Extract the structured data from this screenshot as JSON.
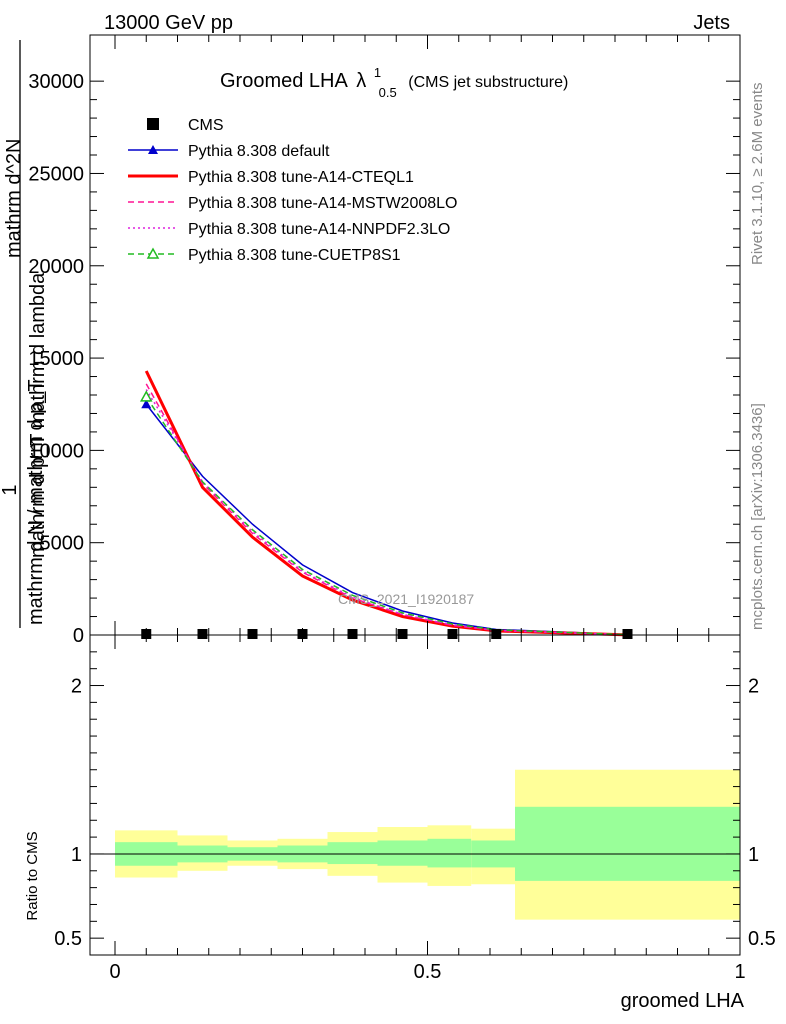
{
  "header": {
    "left": "13000 GeV pp",
    "right": "Jets"
  },
  "side": {
    "top": "Rivet 3.1.10, ≥ 2.6M events",
    "bottom": "mcplots.cern.ch [arXiv:1306.3436]"
  },
  "watermark": "CMS_2021_I1920187",
  "chart_data": [
    {
      "type": "line",
      "title": {
        "main": "Groomed LHA",
        "lambda": "λ",
        "sup": "1",
        "sub": "0.5",
        "note": "(CMS jet substructure)"
      },
      "ylabel": {
        "frac_numerator": "1",
        "frac_denominator": "mathrm d N / mathrm d p_T",
        "overlay_line1": "mathrm d^2N",
        "overlay_line2": "mathrm d p_T mathrm d lambda"
      },
      "xlim": [
        -0.04,
        1.0
      ],
      "ylim": [
        0,
        32500
      ],
      "yticks": [
        {
          "value": 0,
          "label": "0"
        },
        {
          "value": 5000,
          "label": "5000"
        },
        {
          "value": 10000,
          "label": "10000"
        },
        {
          "value": 15000,
          "label": "15000"
        },
        {
          "value": 20000,
          "label": "20000"
        },
        {
          "value": 25000,
          "label": "25000"
        },
        {
          "value": 30000,
          "label": "30000"
        }
      ],
      "x_bins": [
        0.05,
        0.14,
        0.22,
        0.3,
        0.38,
        0.46,
        0.54,
        0.61,
        0.82
      ],
      "series": [
        {
          "name": "CMS",
          "color": "#000000",
          "style": "square",
          "values": [
            0,
            0,
            0,
            0,
            0,
            0,
            0,
            0,
            0
          ]
        },
        {
          "name": "Pythia 8.308 default",
          "color": "#0000cc",
          "style": "solid-triangle",
          "values": [
            12500,
            8600,
            6000,
            3800,
            2300,
            1300,
            650,
            300,
            20
          ]
        },
        {
          "name": "Pythia 8.308 tune-A14-CTEQL1",
          "color": "#ff0000",
          "style": "solid-thick",
          "values": [
            14300,
            8000,
            5300,
            3200,
            1900,
            1000,
            480,
            220,
            10
          ]
        },
        {
          "name": "Pythia 8.308 tune-A14-MSTW2008LO",
          "color": "#ff1493",
          "style": "dashed",
          "values": [
            13600,
            8200,
            5500,
            3400,
            2000,
            1100,
            520,
            240,
            12
          ]
        },
        {
          "name": "Pythia 8.308 tune-A14-NNPDF2.3LO",
          "color": "#dd22dd",
          "style": "dotted",
          "values": [
            13300,
            8300,
            5600,
            3450,
            2050,
            1120,
            540,
            250,
            12
          ]
        },
        {
          "name": "Pythia 8.308 tune-CUETP8S1",
          "color": "#22bb22",
          "style": "dashed-open-triangle",
          "values": [
            12900,
            8300,
            5700,
            3550,
            2150,
            1200,
            600,
            280,
            15
          ]
        }
      ]
    },
    {
      "type": "area",
      "ylabel": "Ratio to CMS",
      "xlabel": "groomed LHA",
      "xlim": [
        -0.04,
        1.0
      ],
      "ylim": [
        0.4,
        2.3
      ],
      "yticks": [
        {
          "value": 0.5,
          "label": "0.5"
        },
        {
          "value": 1,
          "label": "1"
        },
        {
          "value": 2,
          "label": "2"
        }
      ],
      "xticks": [
        {
          "value": 0,
          "label": "0"
        },
        {
          "value": 0.5,
          "label": "0.5"
        },
        {
          "value": 1,
          "label": "1"
        }
      ],
      "bins": [
        {
          "lo": 0.0,
          "hi": 0.1,
          "inner": [
            0.93,
            1.07
          ],
          "outer": [
            0.86,
            1.14
          ]
        },
        {
          "lo": 0.1,
          "hi": 0.18,
          "inner": [
            0.95,
            1.05
          ],
          "outer": [
            0.9,
            1.11
          ]
        },
        {
          "lo": 0.18,
          "hi": 0.26,
          "inner": [
            0.96,
            1.04
          ],
          "outer": [
            0.93,
            1.08
          ]
        },
        {
          "lo": 0.26,
          "hi": 0.34,
          "inner": [
            0.95,
            1.05
          ],
          "outer": [
            0.91,
            1.09
          ]
        },
        {
          "lo": 0.34,
          "hi": 0.42,
          "inner": [
            0.94,
            1.07
          ],
          "outer": [
            0.87,
            1.13
          ]
        },
        {
          "lo": 0.42,
          "hi": 0.5,
          "inner": [
            0.93,
            1.08
          ],
          "outer": [
            0.83,
            1.16
          ]
        },
        {
          "lo": 0.5,
          "hi": 0.57,
          "inner": [
            0.92,
            1.09
          ],
          "outer": [
            0.81,
            1.17
          ]
        },
        {
          "lo": 0.57,
          "hi": 0.64,
          "inner": [
            0.92,
            1.08
          ],
          "outer": [
            0.82,
            1.15
          ]
        },
        {
          "lo": 0.64,
          "hi": 1.0,
          "inner": [
            0.84,
            1.28
          ],
          "outer": [
            0.61,
            1.5
          ]
        }
      ],
      "band_colors": {
        "inner": "#99ff99",
        "outer": "#ffff99"
      }
    }
  ]
}
